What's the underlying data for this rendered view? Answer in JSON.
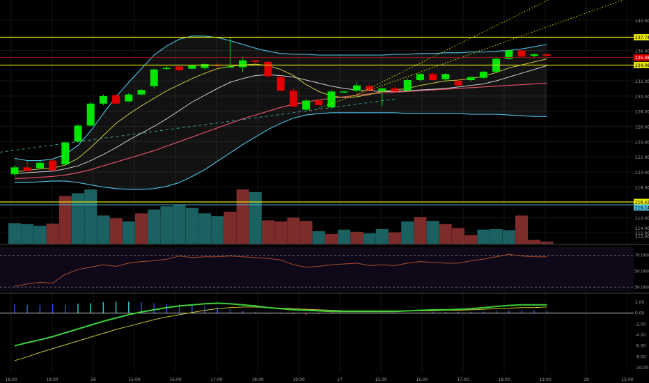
{
  "colors": {
    "up": "#00e600",
    "down": "#e00000",
    "bb_band": "#4ab8d8",
    "bb_mid": "#cfcfcf",
    "ma_fast": "#c8c840",
    "ma_slow": "#e0506a",
    "level": "#e6e600",
    "vol_up": "#1e6b6b",
    "vol_down": "#8b3030",
    "rsi": "#a85030",
    "macd": "#3bd13b",
    "signal": "#c8c832",
    "hist": "#3050e0"
  },
  "chart_data": [
    {
      "type": "candlestick",
      "name": "price",
      "x_labels": [
        "18:00",
        "19:00",
        "26",
        "15:00",
        "16:00",
        "17:00",
        "18:00",
        "19:00",
        "27",
        "15:00",
        "16:00",
        "17:00",
        "18:00",
        "19:00",
        "28",
        "15:00",
        "16:00",
        "17:00",
        "18:00",
        "19:00",
        "29",
        "15:00"
      ],
      "y_ticks": [
        212,
        214,
        216,
        218,
        220,
        222,
        224,
        226,
        228,
        230,
        232,
        234,
        236,
        238,
        240
      ],
      "y_tick_labels": [
        "212.00",
        "214.00",
        "216.00",
        "218.00",
        "220.00",
        "222.00",
        "224.00",
        "226.00",
        "228.00",
        "230.00",
        "232.00",
        "234.00",
        "236.00",
        "238.00",
        "240.00"
      ],
      "ylim": [
        211,
        241
      ],
      "candles": [
        {
          "o": 219.7,
          "h": 220.9,
          "l": 219.4,
          "c": 220.6
        },
        {
          "o": 220.6,
          "h": 221.4,
          "l": 220.1,
          "c": 220.1
        },
        {
          "o": 220.5,
          "h": 221.5,
          "l": 220.3,
          "c": 221.2
        },
        {
          "o": 221.5,
          "h": 221.7,
          "l": 220.2,
          "c": 220.2
        },
        {
          "o": 221.0,
          "h": 224.0,
          "l": 220.9,
          "c": 223.9
        },
        {
          "o": 224.0,
          "h": 226.3,
          "l": 223.8,
          "c": 226.1
        },
        {
          "o": 226.1,
          "h": 229.2,
          "l": 226.0,
          "c": 229.0
        },
        {
          "o": 229.0,
          "h": 230.2,
          "l": 228.8,
          "c": 230.0
        },
        {
          "o": 230.1,
          "h": 230.3,
          "l": 228.9,
          "c": 229.0
        },
        {
          "o": 229.3,
          "h": 230.4,
          "l": 229.2,
          "c": 230.2
        },
        {
          "o": 230.2,
          "h": 230.9,
          "l": 230.1,
          "c": 230.8
        },
        {
          "o": 231.3,
          "h": 233.6,
          "l": 231.0,
          "c": 233.5
        },
        {
          "o": 233.6,
          "h": 233.9,
          "l": 233.4,
          "c": 233.7
        },
        {
          "o": 233.9,
          "h": 233.9,
          "l": 233.3,
          "c": 233.4
        },
        {
          "o": 233.6,
          "h": 234.1,
          "l": 233.5,
          "c": 234.0
        },
        {
          "o": 233.7,
          "h": 234.3,
          "l": 233.5,
          "c": 234.2
        },
        {
          "o": 234.1,
          "h": 234.3,
          "l": 233.8,
          "c": 234.0
        },
        {
          "o": 233.9,
          "h": 237.8,
          "l": 233.8,
          "c": 233.9
        },
        {
          "o": 233.8,
          "h": 235.2,
          "l": 233.2,
          "c": 234.7
        },
        {
          "o": 234.7,
          "h": 234.8,
          "l": 234.3,
          "c": 234.5
        },
        {
          "o": 234.5,
          "h": 234.6,
          "l": 232.5,
          "c": 232.6
        },
        {
          "o": 232.5,
          "h": 232.7,
          "l": 230.6,
          "c": 230.7
        },
        {
          "o": 230.7,
          "h": 231.0,
          "l": 228.5,
          "c": 228.6
        },
        {
          "o": 228.2,
          "h": 229.6,
          "l": 228.0,
          "c": 229.4
        },
        {
          "o": 229.4,
          "h": 229.6,
          "l": 228.8,
          "c": 228.8
        },
        {
          "o": 228.5,
          "h": 230.8,
          "l": 228.3,
          "c": 230.6
        },
        {
          "o": 230.6,
          "h": 230.7,
          "l": 230.4,
          "c": 230.6
        },
        {
          "o": 230.7,
          "h": 231.8,
          "l": 230.5,
          "c": 231.4
        },
        {
          "o": 231.3,
          "h": 231.5,
          "l": 230.7,
          "c": 230.7
        },
        {
          "o": 230.7,
          "h": 231.1,
          "l": 228.7,
          "c": 231.0
        },
        {
          "o": 231.0,
          "h": 231.3,
          "l": 230.4,
          "c": 230.6
        },
        {
          "o": 230.7,
          "h": 232.3,
          "l": 230.6,
          "c": 232.1
        },
        {
          "o": 232.1,
          "h": 233.0,
          "l": 231.9,
          "c": 232.9
        },
        {
          "o": 232.9,
          "h": 233.1,
          "l": 232.0,
          "c": 232.1
        },
        {
          "o": 232.2,
          "h": 233.0,
          "l": 231.9,
          "c": 232.9
        },
        {
          "o": 232.0,
          "h": 232.2,
          "l": 231.3,
          "c": 231.4
        },
        {
          "o": 232.1,
          "h": 232.6,
          "l": 231.9,
          "c": 232.5
        },
        {
          "o": 232.4,
          "h": 233.3,
          "l": 232.3,
          "c": 233.2
        },
        {
          "o": 233.2,
          "h": 235.0,
          "l": 233.1,
          "c": 234.9
        },
        {
          "o": 234.9,
          "h": 236.1,
          "l": 234.8,
          "c": 236.0
        },
        {
          "o": 236.0,
          "h": 236.1,
          "l": 235.1,
          "c": 235.2
        },
        {
          "o": 235.3,
          "h": 235.6,
          "l": 235.0,
          "c": 235.5
        },
        {
          "o": 235.5,
          "h": 235.6,
          "l": 235.1,
          "c": 235.3
        }
      ],
      "bb_upper": [
        221.8,
        221.5,
        221.5,
        221.7,
        222.3,
        223.5,
        225.4,
        227.7,
        229.9,
        231.8,
        233.6,
        235.4,
        236.6,
        237.5,
        237.9,
        237.9,
        237.7,
        237.3,
        236.8,
        236.3,
        235.9,
        235.6,
        235.5,
        235.5,
        235.4,
        235.4,
        235.4,
        235.4,
        235.4,
        235.4,
        235.5,
        235.5,
        235.6,
        235.6,
        235.7,
        235.7,
        235.8,
        235.8,
        235.9,
        236.0,
        236.2,
        236.5,
        236.8
      ],
      "bb_lower": [
        218.6,
        218.6,
        218.7,
        218.8,
        218.8,
        218.6,
        218.3,
        218.0,
        217.8,
        217.7,
        217.7,
        217.8,
        218.1,
        218.6,
        219.4,
        220.3,
        221.4,
        222.5,
        223.6,
        224.6,
        225.6,
        226.4,
        227.1,
        227.5,
        227.7,
        227.8,
        227.8,
        227.8,
        227.8,
        227.8,
        227.8,
        227.7,
        227.7,
        227.7,
        227.7,
        227.7,
        227.6,
        227.6,
        227.6,
        227.5,
        227.4,
        227.3,
        227.3
      ],
      "bb_mid": [
        219.8,
        219.9,
        220.0,
        220.1,
        220.4,
        220.8,
        221.5,
        222.3,
        223.2,
        224.2,
        225.1,
        226.0,
        227.0,
        228.1,
        229.2,
        230.1,
        231.0,
        231.8,
        232.3,
        232.7,
        232.8,
        232.7,
        232.5,
        232.1,
        231.7,
        231.3,
        231.0,
        230.8,
        230.7,
        230.6,
        230.6,
        230.7,
        230.8,
        230.9,
        231.0,
        231.2,
        231.4,
        231.6,
        232.0,
        232.5,
        233.0,
        233.5,
        234.0
      ],
      "ma_fast": [
        220.0,
        220.2,
        220.4,
        220.5,
        220.9,
        221.8,
        223.2,
        224.8,
        226.4,
        227.6,
        228.7,
        229.7,
        230.7,
        231.5,
        232.3,
        233.0,
        233.6,
        233.9,
        234.1,
        234.2,
        234.0,
        233.5,
        232.7,
        231.5,
        230.6,
        230.0,
        229.8,
        229.9,
        230.2,
        230.6,
        230.8,
        231.0,
        231.4,
        231.7,
        232.0,
        232.1,
        232.3,
        232.6,
        233.1,
        233.7,
        234.1,
        234.5,
        234.9
      ],
      "ma_slow": [
        219.1,
        219.2,
        219.3,
        219.4,
        219.6,
        219.9,
        220.3,
        220.8,
        221.3,
        221.8,
        222.3,
        222.8,
        223.4,
        224.0,
        224.6,
        225.2,
        225.8,
        226.4,
        227.0,
        227.5,
        228.0,
        228.5,
        228.9,
        229.2,
        229.5,
        229.7,
        229.9,
        230.1,
        230.3,
        230.4,
        230.5,
        230.6,
        230.7,
        230.8,
        230.9,
        231.0,
        231.1,
        231.2,
        231.3,
        231.4,
        231.5,
        231.6,
        231.7
      ],
      "levels": [
        {
          "value": 237.74,
          "label": "237.74"
        },
        {
          "value": 234.08,
          "label": "234.08"
        },
        {
          "value": 216.42,
          "label": "216.42"
        }
      ],
      "last_price": {
        "value": 235.08,
        "label": "235.08",
        "sub": "33:17"
      },
      "other_tag": {
        "value": 216.14,
        "label": "216.14"
      },
      "volume": [
        {
          "v": 0.38,
          "up": true
        },
        {
          "v": 0.36,
          "up": true
        },
        {
          "v": 0.33,
          "up": true
        },
        {
          "v": 0.37,
          "up": false
        },
        {
          "v": 0.88,
          "up": false
        },
        {
          "v": 0.93,
          "up": true
        },
        {
          "v": 1.0,
          "up": true
        },
        {
          "v": 0.52,
          "up": true
        },
        {
          "v": 0.47,
          "up": false
        },
        {
          "v": 0.41,
          "up": true
        },
        {
          "v": 0.56,
          "up": false
        },
        {
          "v": 0.63,
          "up": true
        },
        {
          "v": 0.69,
          "up": true
        },
        {
          "v": 0.72,
          "up": true
        },
        {
          "v": 0.66,
          "up": true
        },
        {
          "v": 0.56,
          "up": true
        },
        {
          "v": 0.51,
          "up": true
        },
        {
          "v": 0.59,
          "up": false
        },
        {
          "v": 1.0,
          "up": false
        },
        {
          "v": 0.95,
          "up": true
        },
        {
          "v": 0.43,
          "up": false
        },
        {
          "v": 0.41,
          "up": false
        },
        {
          "v": 0.48,
          "up": false
        },
        {
          "v": 0.42,
          "up": false
        },
        {
          "v": 0.23,
          "up": true
        },
        {
          "v": 0.18,
          "up": false
        },
        {
          "v": 0.26,
          "up": true
        },
        {
          "v": 0.22,
          "up": false
        },
        {
          "v": 0.19,
          "up": true
        },
        {
          "v": 0.27,
          "up": true
        },
        {
          "v": 0.21,
          "up": false
        },
        {
          "v": 0.41,
          "up": true
        },
        {
          "v": 0.49,
          "up": false
        },
        {
          "v": 0.42,
          "up": true
        },
        {
          "v": 0.36,
          "up": false
        },
        {
          "v": 0.29,
          "up": false
        },
        {
          "v": 0.16,
          "up": false
        },
        {
          "v": 0.26,
          "up": true
        },
        {
          "v": 0.27,
          "up": true
        },
        {
          "v": 0.25,
          "up": true
        },
        {
          "v": 0.52,
          "up": false
        },
        {
          "v": 0.07,
          "up": false
        },
        {
          "v": 0.04,
          "up": false
        }
      ],
      "volume_labels": [
        "214.00",
        "212.00"
      ]
    },
    {
      "type": "line",
      "name": "rsi",
      "y_tick_labels": [
        "70.0000",
        "50.0000",
        "30.0000"
      ],
      "ylim": [
        25,
        80
      ],
      "values": [
        31,
        34,
        36,
        35,
        46,
        52,
        55,
        58,
        56,
        60,
        62,
        63,
        65,
        69,
        67,
        68,
        68,
        69,
        68,
        67,
        66,
        64,
        58,
        55,
        56,
        58,
        59,
        60,
        57,
        58,
        57,
        60,
        62,
        61,
        60,
        60,
        63,
        65,
        68,
        71,
        69,
        68,
        68
      ]
    },
    {
      "type": "line",
      "name": "macd",
      "y_tick_labels": [
        "2.00",
        "0.00",
        "-2.00",
        "-4.00",
        "-6.00",
        "-8.00",
        "-10.00"
      ],
      "ylim": [
        -11,
        3
      ],
      "macd": [
        -6.0,
        -5.4,
        -4.9,
        -4.3,
        -3.6,
        -2.9,
        -2.2,
        -1.5,
        -0.9,
        -0.3,
        0.2,
        0.6,
        1.0,
        1.3,
        1.5,
        1.7,
        1.8,
        1.7,
        1.5,
        1.3,
        1.0,
        0.8,
        0.6,
        0.5,
        0.4,
        0.3,
        0.3,
        0.3,
        0.3,
        0.3,
        0.3,
        0.4,
        0.5,
        0.6,
        0.6,
        0.7,
        0.8,
        1.0,
        1.2,
        1.4,
        1.5,
        1.5,
        1.5
      ],
      "signal": [
        -8.7,
        -8.0,
        -7.2,
        -6.5,
        -5.8,
        -5.1,
        -4.4,
        -3.7,
        -3.0,
        -2.4,
        -1.8,
        -1.2,
        -0.7,
        -0.3,
        0.1,
        0.5,
        0.8,
        1.0,
        1.1,
        1.1,
        1.0,
        0.9,
        0.8,
        0.7,
        0.6,
        0.5,
        0.4,
        0.4,
        0.4,
        0.4,
        0.4,
        0.4,
        0.4,
        0.4,
        0.5,
        0.5,
        0.6,
        0.7,
        0.8,
        0.9,
        1.0,
        1.0,
        1.1
      ],
      "hist": [
        1.6,
        1.5,
        1.5,
        1.6,
        1.5,
        1.7,
        1.8,
        2.0,
        2.1,
        2.1,
        2.0,
        1.8,
        1.7,
        1.6,
        1.4,
        1.2,
        1.0,
        0.7,
        0.4,
        0.2,
        -0.1,
        -0.2,
        -0.2,
        -0.4,
        -0.2,
        -0.2,
        -0.1,
        -0.1,
        -0.1,
        -0.1,
        -0.1,
        0.0,
        0.1,
        0.2,
        0.2,
        0.2,
        0.2,
        0.3,
        0.4,
        0.5,
        0.5,
        0.5,
        0.4
      ]
    }
  ]
}
